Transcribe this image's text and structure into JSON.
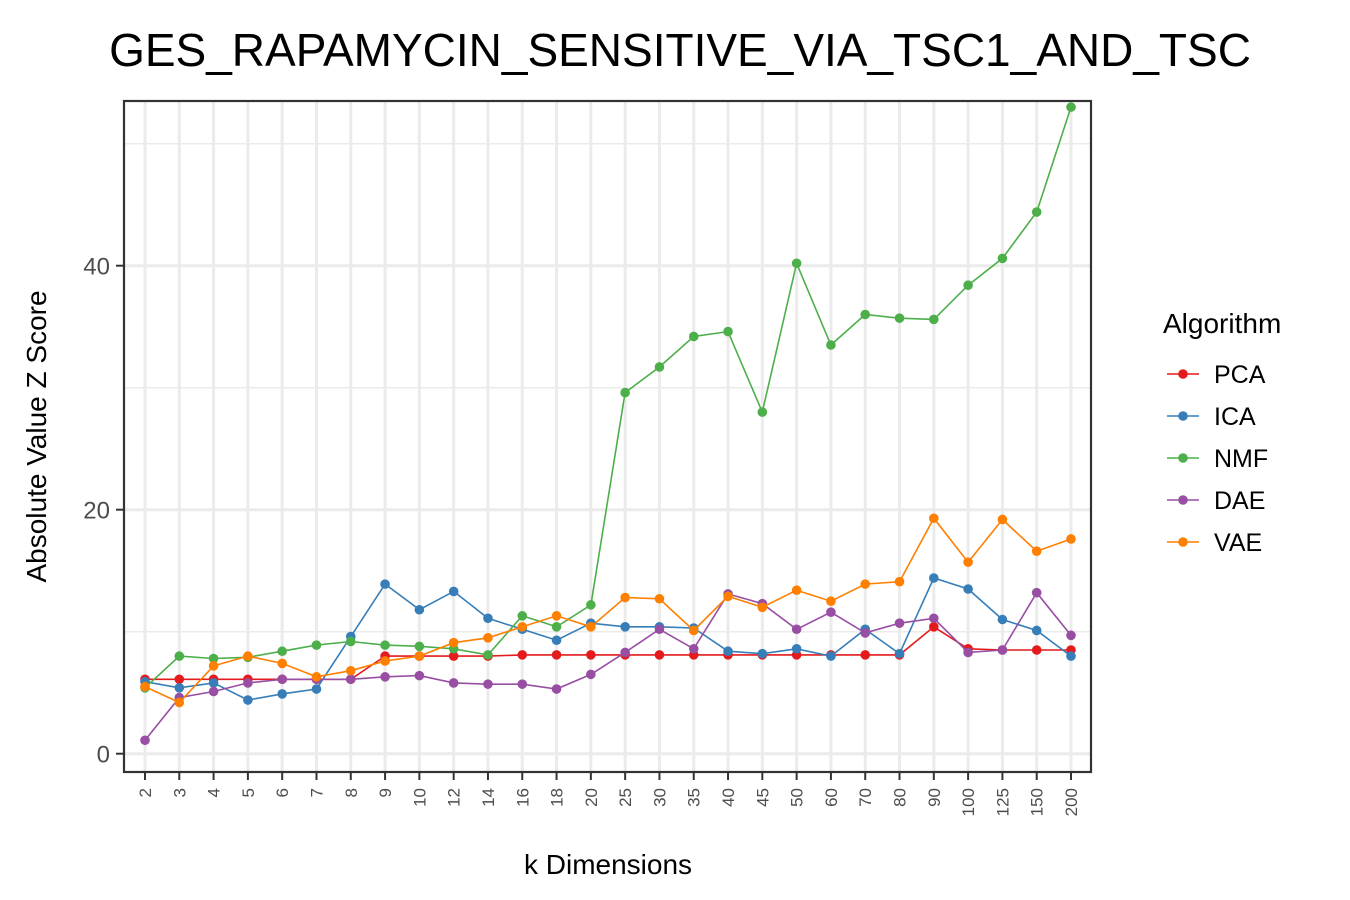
{
  "chart_data": {
    "type": "line",
    "title": "GES_RAPAMYCIN_SENSITIVE_VIA_TSC1_AND_TSC",
    "xlabel": "k Dimensions",
    "ylabel": "Absolute Value Z Score",
    "ylim": [
      -1.5,
      53.5
    ],
    "yticks": [
      0,
      20,
      40
    ],
    "grid": true,
    "legend_title": "Algorithm",
    "legend_position": "right",
    "categories": [
      "2",
      "3",
      "4",
      "5",
      "6",
      "7",
      "8",
      "9",
      "10",
      "12",
      "14",
      "16",
      "18",
      "20",
      "25",
      "30",
      "35",
      "40",
      "45",
      "50",
      "60",
      "70",
      "80",
      "90",
      "100",
      "125",
      "150",
      "200"
    ],
    "series": [
      {
        "name": "PCA",
        "color": "#E41A1C",
        "values": [
          6.1,
          6.1,
          6.1,
          6.1,
          6.1,
          6.1,
          6.1,
          8.0,
          8.0,
          8.0,
          8.0,
          8.1,
          8.1,
          8.1,
          8.1,
          8.1,
          8.1,
          8.1,
          8.1,
          8.1,
          8.1,
          8.1,
          8.1,
          10.4,
          8.6,
          8.5,
          8.5,
          8.5
        ]
      },
      {
        "name": "ICA",
        "color": "#377EB8",
        "values": [
          5.9,
          5.4,
          5.8,
          4.4,
          4.9,
          5.3,
          9.6,
          13.9,
          11.8,
          13.3,
          11.1,
          10.2,
          9.3,
          10.7,
          10.4,
          10.4,
          10.3,
          8.4,
          8.2,
          8.6,
          8.0,
          10.2,
          8.2,
          14.4,
          13.5,
          11.0,
          10.1,
          8.0
        ]
      },
      {
        "name": "NMF",
        "color": "#4DAF4A",
        "values": [
          5.4,
          8.0,
          7.8,
          7.9,
          8.4,
          8.9,
          9.2,
          8.9,
          8.8,
          8.6,
          8.1,
          11.3,
          10.4,
          12.2,
          29.6,
          31.7,
          34.2,
          34.6,
          28.0,
          40.2,
          33.5,
          36.0,
          35.7,
          35.6,
          38.4,
          40.6,
          44.4,
          53.0
        ]
      },
      {
        "name": "DAE",
        "color": "#984EA3",
        "values": [
          1.1,
          4.6,
          5.1,
          5.8,
          6.1,
          6.1,
          6.1,
          6.3,
          6.4,
          5.8,
          5.7,
          5.7,
          5.3,
          6.5,
          8.3,
          10.2,
          8.6,
          13.1,
          12.3,
          10.2,
          11.6,
          9.9,
          10.7,
          11.1,
          8.3,
          8.5,
          13.2,
          9.7
        ]
      },
      {
        "name": "VAE",
        "color": "#FF7F00",
        "values": [
          5.5,
          4.2,
          7.2,
          8.0,
          7.4,
          6.3,
          6.8,
          7.6,
          8.0,
          9.1,
          9.5,
          10.4,
          11.3,
          10.4,
          12.8,
          12.7,
          10.1,
          12.9,
          12.0,
          13.4,
          12.5,
          13.9,
          14.1,
          19.3,
          15.7,
          19.2,
          16.6,
          17.6
        ]
      }
    ]
  }
}
